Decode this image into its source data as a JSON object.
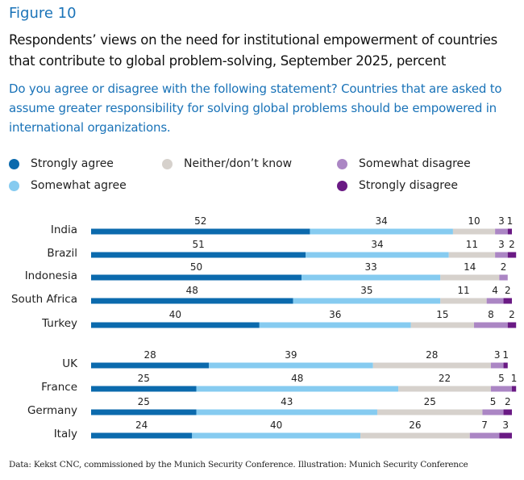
{
  "figure_label": "Figure 10",
  "title": "Respondents’ views on the need for institutional empowerment of countries that contribute to global problem-solving, September 2025, percent",
  "subtitle": "Do you agree or disagree with the following statement? Countries that are asked to assume greater responsibility for solving global problems should be empowered in international organizations.",
  "source": "Data: Kekst CNC, commissioned by the Munich Security Conference. Illustration: Munich Security Conference",
  "chart_data": {
    "type": "bar",
    "orientation": "horizontal",
    "stacked": true,
    "title": "Respondents’ views on the need for institutional empowerment of countries that contribute to global problem-solving, September 2025, percent",
    "xlabel": "",
    "ylabel": "",
    "xlim": [
      0,
      100
    ],
    "grid": false,
    "legend_position": "top",
    "categories": [
      "India",
      "Brazil",
      "Indonesia",
      "South Africa",
      "Turkey",
      "UK",
      "France",
      "Germany",
      "Italy"
    ],
    "groups": [
      [
        "India",
        "Brazil",
        "Indonesia",
        "South Africa",
        "Turkey"
      ],
      [
        "UK",
        "France",
        "Germany",
        "Italy"
      ]
    ],
    "series": [
      {
        "name": "Strongly agree",
        "color": "#0b6aad",
        "values": [
          52,
          51,
          50,
          48,
          40,
          28,
          25,
          25,
          24
        ]
      },
      {
        "name": "Somewhat agree",
        "color": "#86cbf0",
        "values": [
          34,
          34,
          33,
          35,
          36,
          39,
          48,
          43,
          40
        ]
      },
      {
        "name": "Neither/don’t know",
        "color": "#d6d1cc",
        "values": [
          10,
          11,
          14,
          11,
          15,
          28,
          22,
          25,
          26
        ]
      },
      {
        "name": "Somewhat disagree",
        "color": "#ab86c4",
        "values": [
          3,
          3,
          2,
          4,
          8,
          3,
          5,
          5,
          7
        ]
      },
      {
        "name": "Strongly disagree",
        "color": "#6a1a84",
        "values": [
          1,
          2,
          0,
          2,
          2,
          1,
          1,
          2,
          3
        ]
      }
    ]
  }
}
